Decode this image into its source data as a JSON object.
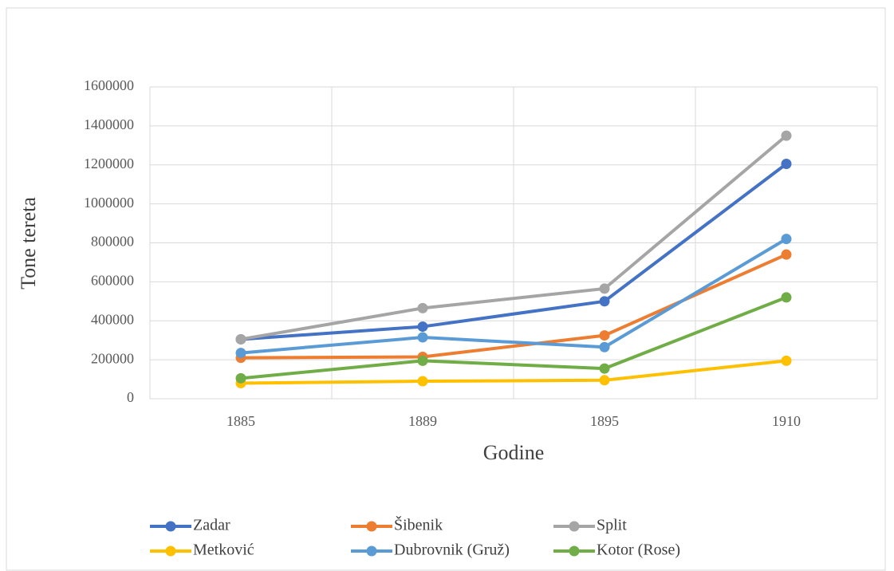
{
  "chart_data": {
    "type": "line",
    "x_label": "Godine",
    "y_label": "Tone tereta",
    "categories": [
      "1885",
      "1889",
      "1895",
      "1910"
    ],
    "series": [
      {
        "name": "Zadar",
        "color": "#4472c4",
        "values": [
          305000,
          370000,
          500000,
          1205000
        ]
      },
      {
        "name": "Šibenik",
        "color": "#ed7d31",
        "values": [
          210000,
          215000,
          325000,
          740000
        ]
      },
      {
        "name": "Split",
        "color": "#a5a5a5",
        "values": [
          305000,
          465000,
          565000,
          1350000
        ]
      },
      {
        "name": "Metković",
        "color": "#ffc000",
        "values": [
          80000,
          90000,
          95000,
          195000
        ]
      },
      {
        "name": "Dubrovnik (Gruž)",
        "color": "#5b9bd5",
        "values": [
          235000,
          315000,
          265000,
          820000
        ]
      },
      {
        "name": "Kotor (Rose)",
        "color": "#70ad47",
        "values": [
          105000,
          195000,
          155000,
          520000
        ]
      }
    ],
    "ylim": [
      0,
      1600000
    ],
    "yticks": [
      0,
      200000,
      400000,
      600000,
      800000,
      1000000,
      1200000,
      1400000,
      1600000
    ],
    "grid": true,
    "legend": "bottom"
  }
}
